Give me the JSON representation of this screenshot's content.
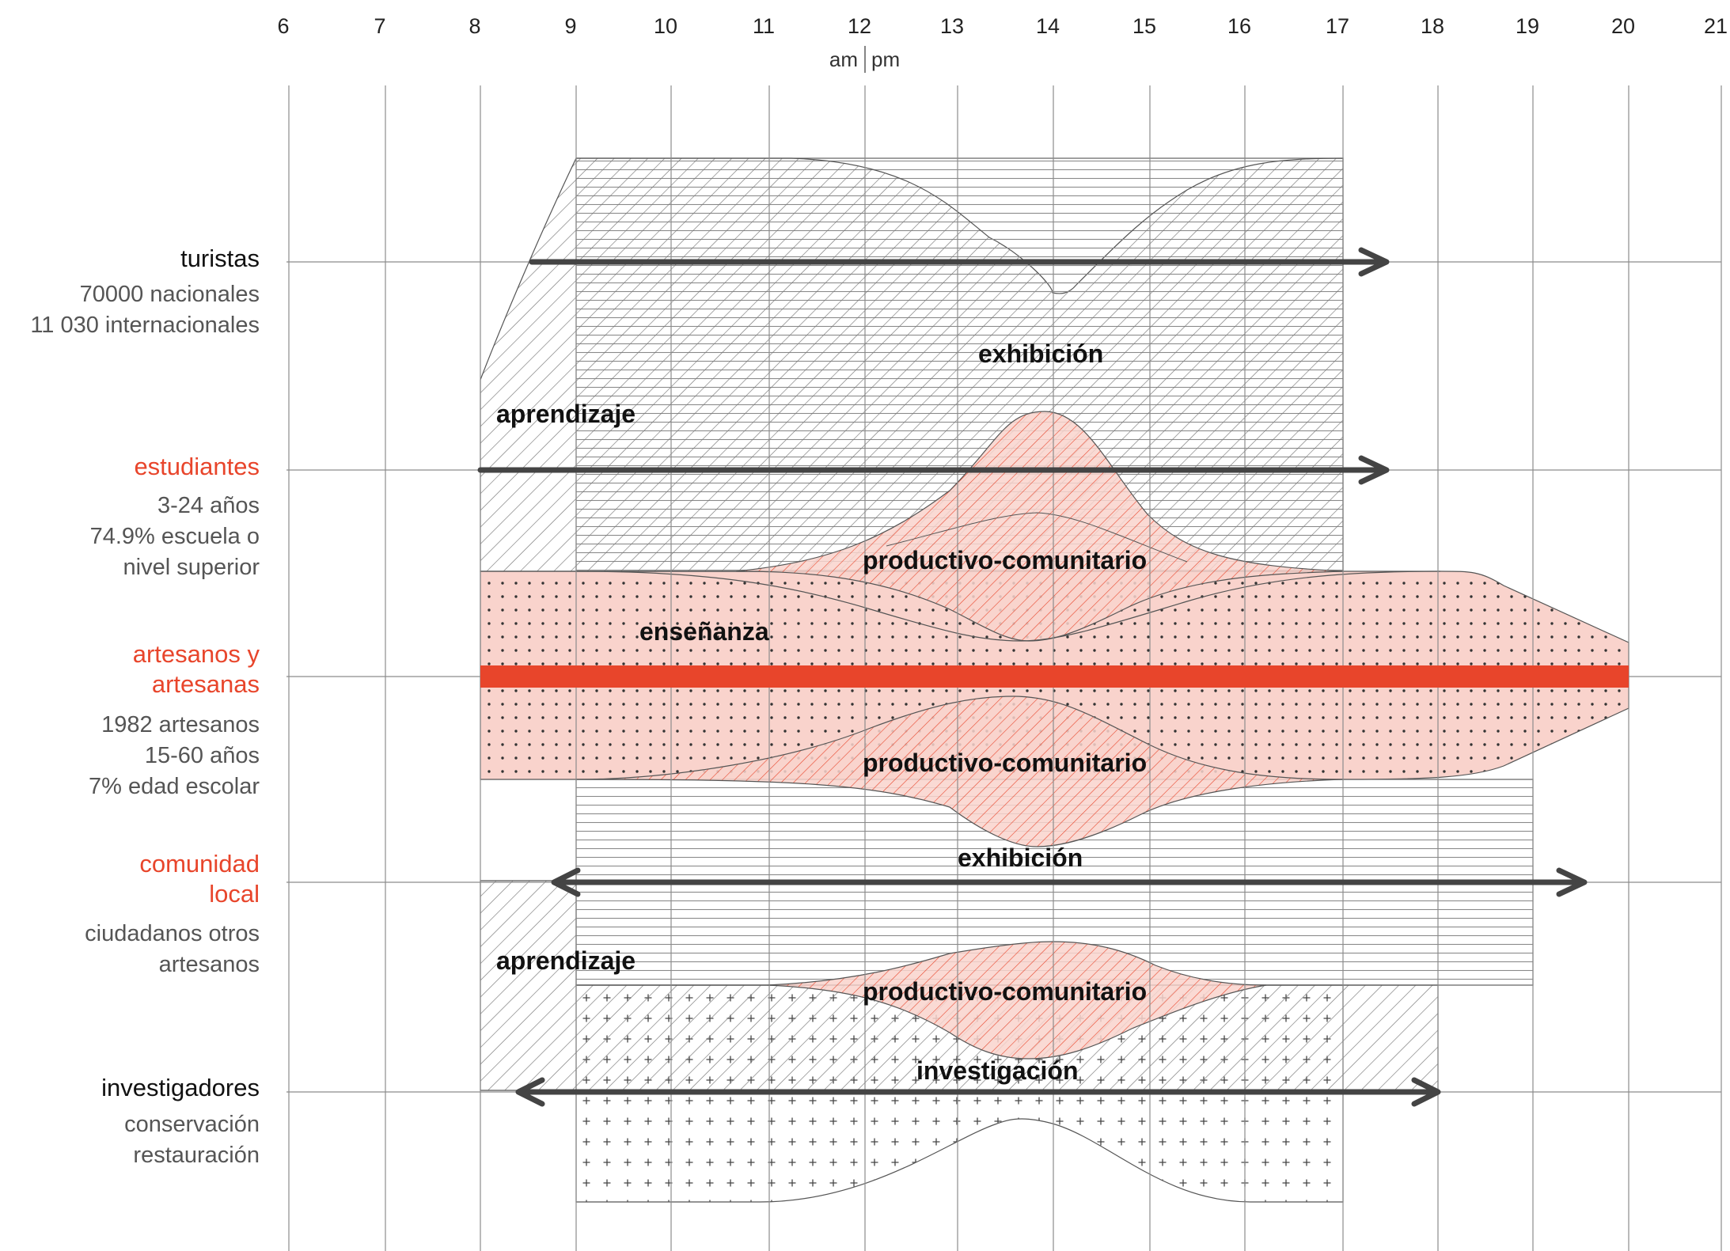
{
  "axis": {
    "hours": [
      "6",
      "7",
      "8",
      "9",
      "10",
      "11",
      "12",
      "13",
      "14",
      "15",
      "16",
      "17",
      "18",
      "19",
      "20",
      "21"
    ],
    "am_label": "am",
    "pm_label": "pm"
  },
  "colors": {
    "accent": "#e8452b",
    "pink_fill": "#f9d3cc",
    "arrow": "#444444",
    "grid": "#8c8c8c",
    "hatch": "#777777"
  },
  "groups": [
    {
      "title": "turistas",
      "highlight": false,
      "lines": [
        "70000 nacionales",
        "11 030 internacionales"
      ]
    },
    {
      "title": "estudiantes",
      "highlight": true,
      "lines": [
        "3-24 años",
        "74.9% escuela o",
        "nivel superior"
      ]
    },
    {
      "title_lines": [
        "artesanos y",
        "artesanas"
      ],
      "highlight": true,
      "lines": [
        "1982 artesanos",
        "15-60 años",
        "7% edad escolar"
      ]
    },
    {
      "title_lines": [
        "comunidad",
        "local"
      ],
      "highlight": true,
      "lines": [
        "ciudadanos otros",
        "artesanos"
      ]
    },
    {
      "title": "investigadores",
      "highlight": false,
      "lines": [
        "conservación",
        "restauración"
      ]
    }
  ],
  "activities": {
    "exhibicion_1": "exhibición",
    "aprendizaje_1": "aprendizaje",
    "productivo_1": "productivo-comunitario",
    "ensenanza": "enseñanza",
    "productivo_2": "productivo-comunitario",
    "exhibicion_2": "exhibición",
    "aprendizaje_2": "aprendizaje",
    "productivo_3": "productivo-comunitario",
    "investigacion": "investigación"
  }
}
